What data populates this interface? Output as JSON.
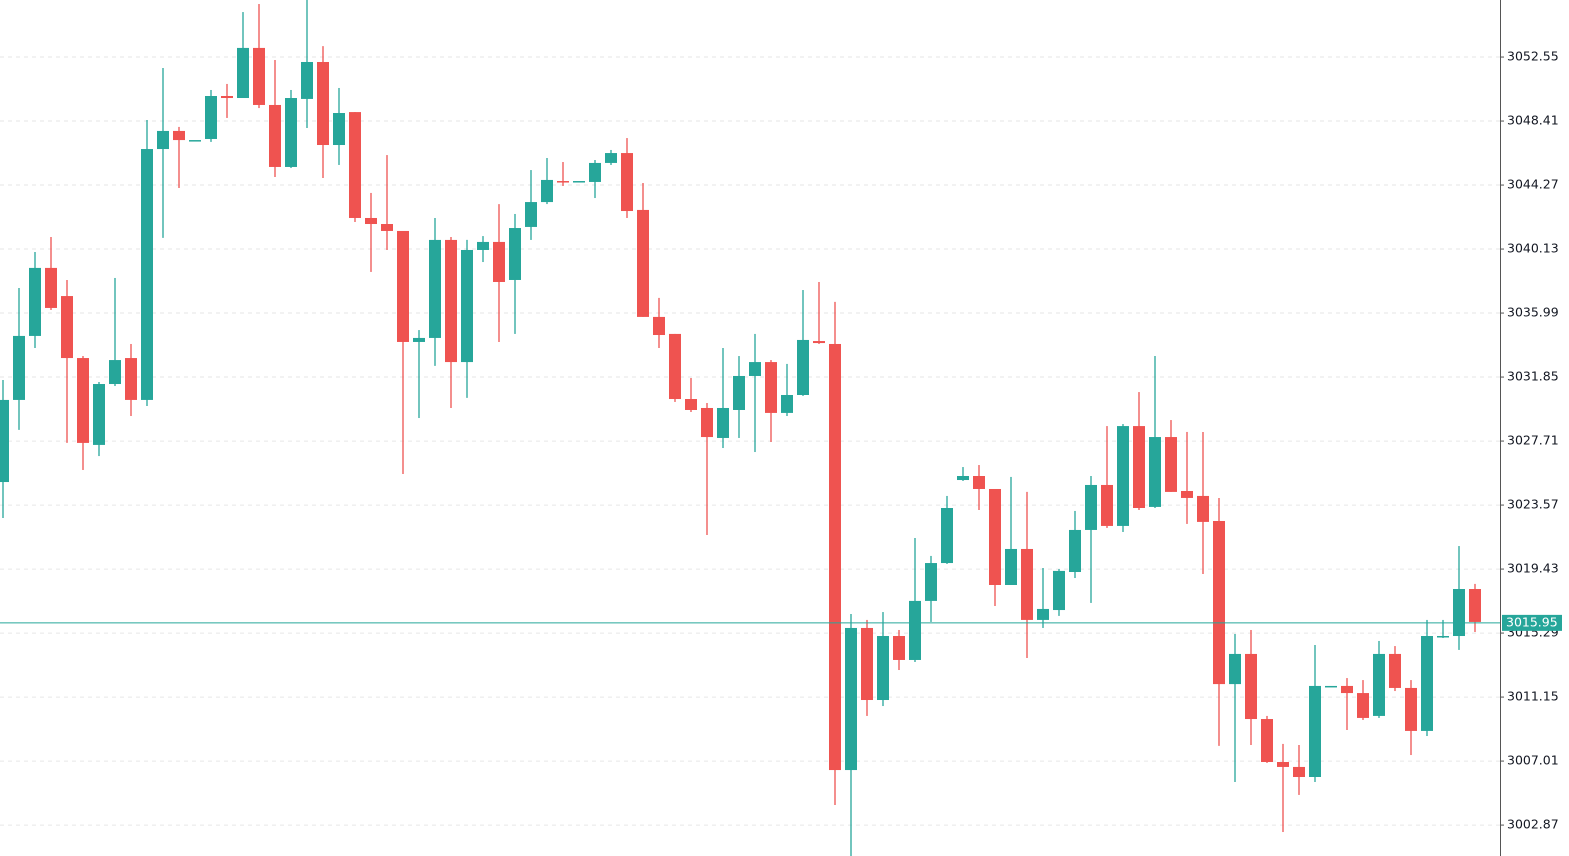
{
  "chart_data": {
    "type": "candlestick",
    "up_color": "#26a69a",
    "down_color": "#ef5350",
    "grid": true,
    "ylim": [
      3000.87,
      3056.24
    ],
    "yticks": [
      3052.55,
      3048.41,
      3044.27,
      3040.13,
      3035.99,
      3031.85,
      3027.71,
      3023.57,
      3019.43,
      3015.29,
      3011.15,
      3007.01,
      3002.87
    ],
    "last_price": 3015.95,
    "open": [
      3025.06,
      3030.37,
      3034.51,
      3038.91,
      3037.09,
      3033.08,
      3027.46,
      3031.4,
      3033.08,
      3030.37,
      3046.6,
      3047.77,
      3047.18,
      3047.25,
      3050.03,
      3049.9,
      3053.14,
      3049.45,
      3045.44,
      3049.84,
      3052.23,
      3046.86,
      3048.99,
      3042.14,
      3041.75,
      3041.3,
      3034.12,
      3034.38,
      3040.72,
      3032.82,
      3040.07,
      3040.59,
      3038.13,
      3041.56,
      3043.17,
      3044.53,
      3044.53,
      3044.47,
      3045.7,
      3046.34,
      3042.66,
      3035.74,
      3034.64,
      3030.43,
      3029.85,
      3027.91,
      3029.72,
      3031.92,
      3032.82,
      3029.53,
      3030.69,
      3034.18,
      3033.99,
      3006.43,
      3015.62,
      3010.96,
      3015.1,
      3013.55,
      3017.37,
      3019.82,
      3025.19,
      3025.45,
      3024.61,
      3018.4,
      3020.73,
      3016.14,
      3016.78,
      3019.24,
      3021.96,
      3024.87,
      3022.22,
      3028.68,
      3023.45,
      3027.97,
      3024.48,
      3024.16,
      3022.54,
      3011.99,
      3013.94,
      3009.73,
      3006.95,
      3006.63,
      3005.98,
      3011.87,
      3011.87,
      3011.41,
      3009.93,
      3013.94,
      3011.74,
      3008.96,
      3015.1,
      3015.1,
      3018.14
    ],
    "high": [
      3031.66,
      3037.61,
      3039.94,
      3040.91,
      3038.13,
      3033.21,
      3031.53,
      3038.26,
      3033.99,
      3048.48,
      3051.84,
      3048.03,
      3047.18,
      3050.42,
      3050.81,
      3055.46,
      3055.98,
      3052.36,
      3050.42,
      3056.24,
      3053.26,
      3050.55,
      3048.99,
      3043.76,
      3046.21,
      3041.3,
      3034.89,
      3042.14,
      3040.91,
      3040.72,
      3040.97,
      3043.04,
      3042.4,
      3045.24,
      3046.02,
      3045.76,
      3044.53,
      3045.89,
      3046.54,
      3047.31,
      3044.4,
      3036.97,
      3034.64,
      3031.79,
      3030.17,
      3033.73,
      3033.21,
      3034.64,
      3032.95,
      3032.7,
      3037.48,
      3038.0,
      3036.71,
      3016.52,
      3016.14,
      3016.65,
      3015.49,
      3021.44,
      3020.28,
      3024.16,
      3026.03,
      3026.16,
      3024.61,
      3025.39,
      3024.42,
      3019.5,
      3019.43,
      3023.19,
      3025.45,
      3028.68,
      3028.81,
      3030.88,
      3033.21,
      3029.07,
      3028.3,
      3028.3,
      3024.03,
      3015.23,
      3015.49,
      3009.93,
      3008.12,
      3008.05,
      3014.52,
      3011.87,
      3012.38,
      3012.25,
      3014.78,
      3014.45,
      3012.25,
      3016.14,
      3016.14,
      3020.92,
      3018.47
    ],
    "low": [
      3022.73,
      3028.43,
      3033.73,
      3036.19,
      3027.59,
      3025.84,
      3026.74,
      3031.27,
      3029.33,
      3029.98,
      3040.85,
      3044.08,
      3047.18,
      3047.06,
      3048.61,
      3049.9,
      3049.25,
      3044.79,
      3045.37,
      3047.96,
      3044.73,
      3045.57,
      3041.88,
      3038.65,
      3040.07,
      3025.58,
      3029.2,
      3032.57,
      3029.85,
      3030.5,
      3039.29,
      3034.12,
      3034.64,
      3040.72,
      3043.04,
      3044.21,
      3044.53,
      3043.43,
      3045.57,
      3042.14,
      3035.74,
      3033.73,
      3030.24,
      3029.59,
      3021.63,
      3027.26,
      3027.91,
      3027.0,
      3027.65,
      3029.33,
      3030.63,
      3033.99,
      3004.17,
      3000.87,
      3009.93,
      3010.57,
      3012.9,
      3013.42,
      3016.01,
      3019.76,
      3025.13,
      3023.25,
      3017.04,
      3018.4,
      3013.68,
      3015.62,
      3016.4,
      3018.85,
      3017.24,
      3022.09,
      3021.83,
      3023.25,
      3023.38,
      3024.42,
      3022.35,
      3019.11,
      3007.99,
      3005.66,
      3008.05,
      3006.89,
      3002.42,
      3004.82,
      3005.66,
      3011.87,
      3009.02,
      3009.67,
      3009.8,
      3011.54,
      3007.4,
      3008.63,
      3014.97,
      3014.2,
      3015.36
    ],
    "close": [
      3030.37,
      3034.51,
      3038.91,
      3036.32,
      3033.08,
      3027.59,
      3031.4,
      3032.95,
      3030.37,
      3046.6,
      3047.77,
      3047.18,
      3047.18,
      3050.03,
      3049.9,
      3053.14,
      3049.45,
      3045.44,
      3049.9,
      3052.23,
      3046.86,
      3048.93,
      3042.14,
      3041.75,
      3041.3,
      3034.12,
      3034.38,
      3040.72,
      3032.82,
      3040.07,
      3040.59,
      3038.0,
      3041.49,
      3043.17,
      3044.6,
      3044.47,
      3044.53,
      3045.7,
      3046.34,
      3042.59,
      3035.74,
      3034.57,
      3030.43,
      3029.72,
      3027.97,
      3029.85,
      3031.92,
      3032.82,
      3029.53,
      3030.69,
      3034.25,
      3034.05,
      3006.43,
      3015.62,
      3010.96,
      3015.1,
      3013.55,
      3017.37,
      3019.82,
      3023.38,
      3025.45,
      3024.61,
      3018.4,
      3020.73,
      3016.14,
      3016.85,
      3019.31,
      3021.96,
      3024.87,
      3022.22,
      3028.68,
      3023.38,
      3027.97,
      3024.42,
      3024.03,
      3022.48,
      3011.99,
      3013.94,
      3009.73,
      3006.95,
      3006.63,
      3005.98,
      3011.87,
      3011.87,
      3011.41,
      3009.8,
      3013.94,
      3011.74,
      3008.96,
      3015.1,
      3015.1,
      3018.14,
      3016.01
    ]
  }
}
